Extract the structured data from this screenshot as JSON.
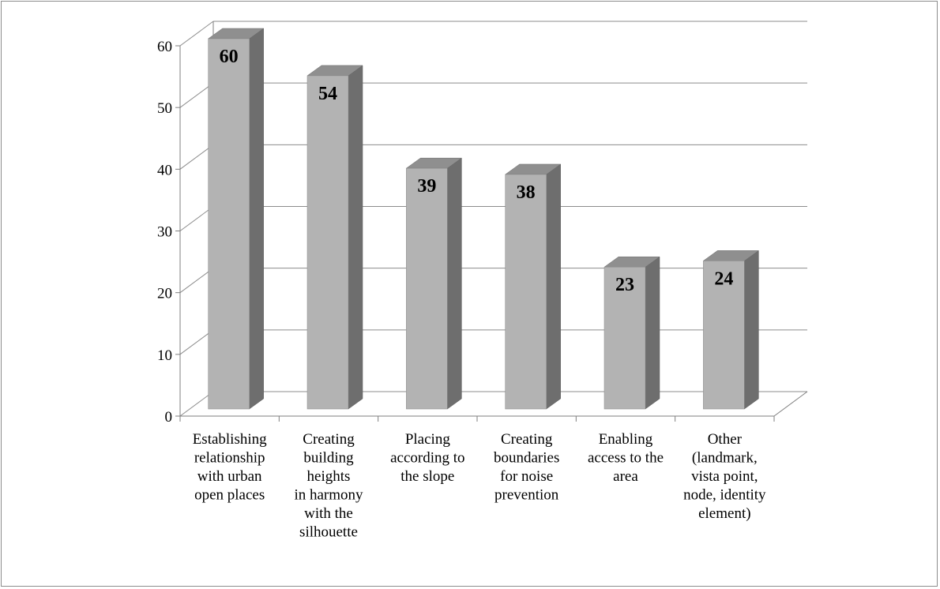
{
  "chart_data": {
    "type": "bar",
    "style": "3d-column",
    "title": "",
    "xlabel": "",
    "ylabel": "",
    "ylim": [
      0,
      60
    ],
    "yticks": [
      "0",
      "10",
      "20",
      "30",
      "40",
      "50",
      "60"
    ],
    "grid": true,
    "legend": "none",
    "categories": [
      [
        "Establishing",
        "relationship",
        "with urban",
        "open places"
      ],
      [
        "Creating",
        "building",
        "heights",
        "in harmony",
        "with the",
        "silhouette"
      ],
      [
        "Placing",
        "according to",
        "the slope"
      ],
      [
        "Creating",
        "boundaries",
        "for noise",
        "prevention"
      ],
      [
        "Enabling",
        "access to the",
        "area"
      ],
      [
        "Other",
        "(landmark,",
        "vista point,",
        "node, identity",
        "element)"
      ]
    ],
    "values": [
      60,
      54,
      39,
      38,
      23,
      24
    ],
    "data_labels": [
      "60",
      "54",
      "39",
      "38",
      "23",
      "24"
    ],
    "colors": {
      "bar_front": "#b3b3b3",
      "bar_side": "#6e6e6e",
      "bar_top": "#8f8f8f",
      "grid": "#8c8c8c",
      "axis": "#7f7f7f"
    }
  }
}
